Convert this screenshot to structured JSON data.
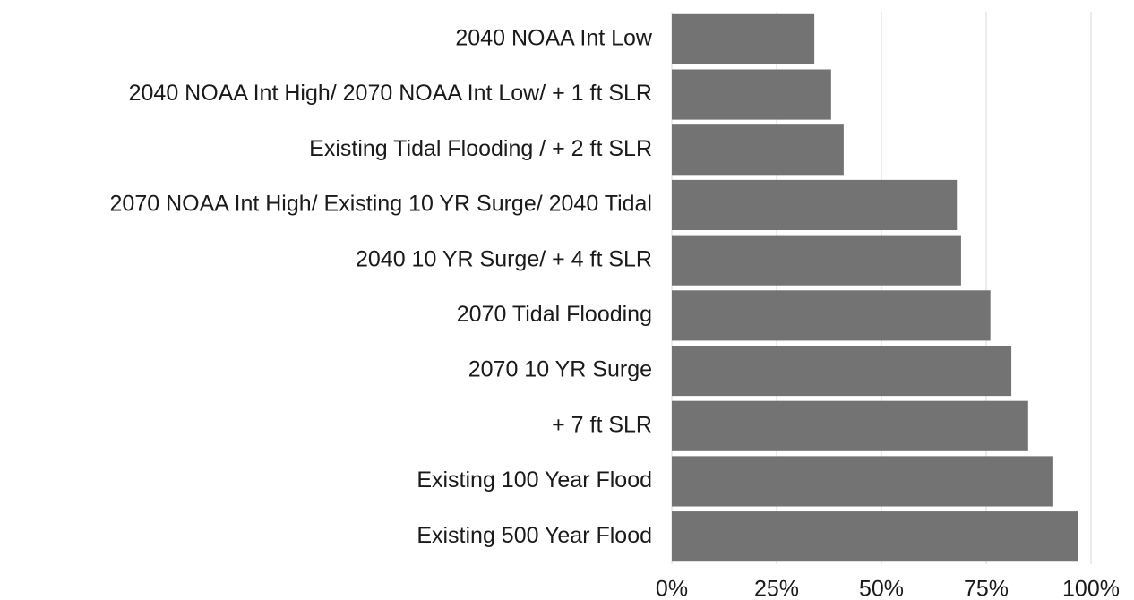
{
  "chart_data": {
    "type": "bar",
    "orientation": "horizontal",
    "categories": [
      "2040 NOAA Int Low",
      "2040 NOAA Int High/ 2070 NOAA Int Low/ + 1 ft SLR",
      "Existing Tidal Flooding / + 2 ft SLR",
      "2070 NOAA Int High/ Existing 10 YR Surge/ 2040 Tidal",
      "2040 10 YR Surge/ + 4 ft SLR",
      "2070 Tidal Flooding",
      "2070 10 YR Surge",
      "+ 7 ft SLR",
      "Existing 100 Year Flood",
      "Existing 500 Year Flood"
    ],
    "values": [
      34,
      38,
      41,
      68,
      69,
      76,
      81,
      85,
      91,
      97
    ],
    "color": "#737373",
    "xlim": [
      0,
      100
    ],
    "xticks": [
      {
        "value": 0,
        "label": "0%"
      },
      {
        "value": 25,
        "label": "25%"
      },
      {
        "value": 50,
        "label": "50%"
      },
      {
        "value": 75,
        "label": "75%"
      },
      {
        "value": 100,
        "label": "100%"
      }
    ],
    "grid": true
  }
}
